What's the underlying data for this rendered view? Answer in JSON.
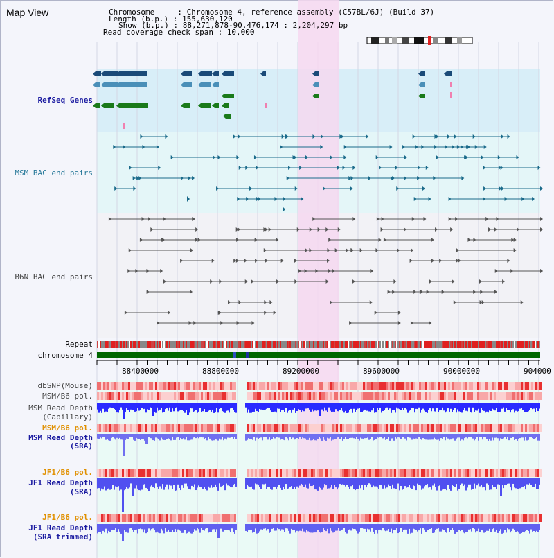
{
  "view_title": "Map View",
  "info": {
    "chromosome": "Chromosome     : Chromosome 4, reference assembly (C57BL/6J) (Build 37)",
    "length": "Length (b.p.) : 155,630,120",
    "show": "Show (b.p.) : 88,271,878-90,476,174 : 2,204,297 bp",
    "coverage": "Read coverage check span : 10,000"
  },
  "tracks": {
    "refseq": "RefSeq Genes",
    "msm_bac": "MSM BAC end pairs",
    "b6n_bac": "B6N BAC end pairs",
    "repeat": "Repeat",
    "chromosome": "chromosome 4",
    "dbsnp": "dbSNP(Mouse)",
    "msm_b6_pol_1": "MSM/B6 pol.",
    "msm_depth_cap_1": "MSM Read Depth",
    "msm_depth_cap_2": "(Capillary)",
    "msm_b6_pol_2": "MSM/B6 pol.",
    "msm_depth_sra_1": "MSM Read Depth",
    "msm_depth_sra_2": "(SRA)",
    "jf1_b6_pol_1": "JF1/B6 pol.",
    "jf1_depth_sra_1": "JF1 Read Depth",
    "jf1_depth_sra_2": "(SRA)",
    "jf1_b6_pol_2": "JF1/B6 pol.",
    "jf1_depth_trim_1": "JF1 Read Depth",
    "jf1_depth_trim_2": "(SRA trimmed)"
  },
  "axis_ticks": [
    "88400000",
    "88800000",
    "89200000",
    "89600000",
    "90000000",
    "904000"
  ],
  "colors": {
    "highlight": "#f6d8f0",
    "chromosome": "#006600",
    "refseq_gene": "#4a8fb8",
    "refseq_green": "#1a7a1a",
    "depth_blue": "#2a2aff"
  }
}
